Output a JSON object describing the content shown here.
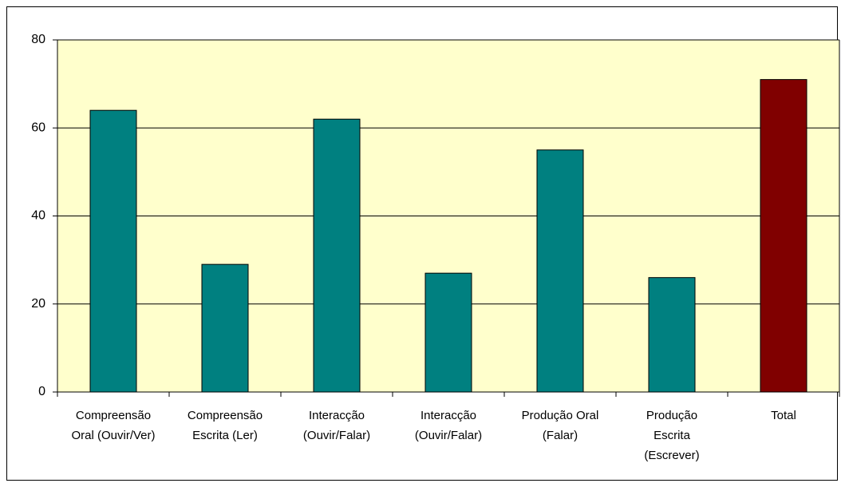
{
  "chart_data": {
    "type": "bar",
    "categories": [
      "Compreensão Oral (Ouvir/Ver)",
      "Compreensão Escrita (Ler)",
      "Interacção (Ouvir/Falar)",
      "Interacção (Ouvir/Falar)",
      "Produção Oral (Falar)",
      "Produção Escrita (Escrever)",
      "Total"
    ],
    "values": [
      64,
      29,
      62,
      27,
      55,
      26,
      71
    ],
    "colors": [
      "#008080",
      "#008080",
      "#008080",
      "#008080",
      "#008080",
      "#008080",
      "#800000"
    ],
    "ylim": [
      0,
      80
    ],
    "yticks": [
      0,
      20,
      40,
      60,
      80
    ],
    "grid": true
  }
}
